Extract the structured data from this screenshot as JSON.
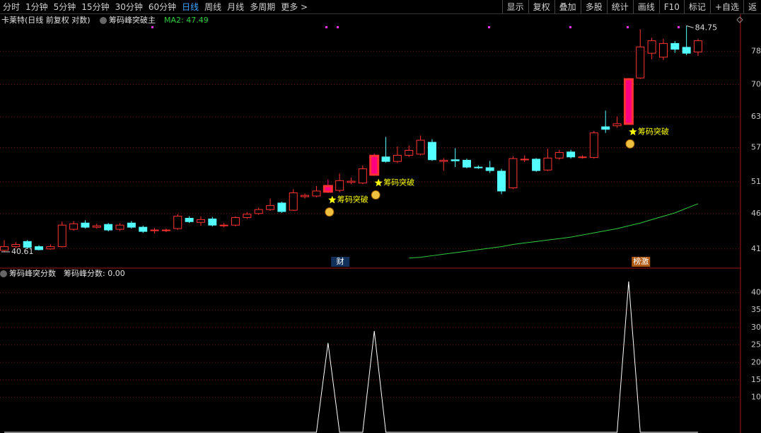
{
  "toolbar": {
    "tabs": [
      "分时",
      "1分钟",
      "5分钟",
      "15分钟",
      "30分钟",
      "60分钟",
      "日线",
      "周线",
      "月线",
      "多周期",
      "更多 >"
    ],
    "active_tab": 6,
    "buttons": [
      "显示",
      "复权",
      "叠加",
      "多股",
      "统计",
      "画线",
      "F10",
      "标记",
      "+自选",
      "返"
    ]
  },
  "main_header": {
    "name": "卡莱特(日线 前复权 对数)",
    "indicator": "筹码峰突破主",
    "ma_label": "MA2: 47.49"
  },
  "chart_data": [
    {
      "type": "candlestick",
      "log_scale": true,
      "grid": true,
      "ylim": [
        38.6,
        88
      ],
      "yticks": [
        41,
        46,
        51,
        57,
        63,
        70,
        78
      ],
      "up_color": "#ff3232",
      "down_color": "#54ffff",
      "highlight_color": "#ff0080",
      "highlight_indices": [
        28,
        32,
        54
      ],
      "open": [
        40.8,
        41.3,
        42.0,
        41.3,
        41.0,
        41.3,
        43.7,
        44.6,
        44.0,
        44.4,
        43.7,
        44.6,
        44.0,
        43.5,
        43.5,
        43.8,
        45.3,
        44.7,
        45.2,
        44.2,
        44.3,
        45.4,
        46.0,
        46.6,
        47.6,
        46.5,
        48.6,
        48.7,
        49.4,
        49.6,
        50.9,
        50.8,
        52.2,
        55.3,
        54.5,
        55.6,
        55.8,
        58.0,
        54.5,
        54.8,
        54.7,
        53.5,
        53.4,
        52.8,
        50.0,
        54.8,
        54.9,
        53.0,
        55.1,
        56.2,
        55.2,
        55.2,
        61.0,
        61.2,
        61.6,
        71.5,
        77.5,
        76.5,
        80.0,
        79.0,
        77.8
      ],
      "high": [
        42.2,
        41.9,
        42.2,
        41.5,
        41.6,
        44.8,
        44.9,
        45.0,
        44.5,
        44.6,
        44.6,
        44.9,
        44.2,
        43.9,
        43.8,
        45.9,
        45.6,
        45.6,
        45.5,
        44.6,
        45.6,
        46.2,
        46.9,
        48.3,
        47.8,
        49.8,
        49.1,
        50.3,
        51.4,
        52.4,
        51.7,
        53.8,
        55.9,
        59.0,
        57.2,
        57.4,
        59.3,
        58.6,
        55.1,
        56.9,
        55.0,
        53.8,
        54.6,
        53.2,
        55.4,
        55.6,
        55.1,
        56.8,
        56.6,
        56.6,
        55.6,
        60.2,
        64.3,
        63.1,
        71.5,
        83.8,
        81.5,
        81.2,
        80.6,
        84.75,
        81.2
      ],
      "low": [
        40.61,
        41.1,
        41.0,
        40.8,
        40.9,
        41.2,
        43.5,
        43.8,
        43.8,
        43.4,
        43.5,
        43.8,
        43.2,
        43.1,
        43.3,
        43.6,
        44.6,
        44.2,
        44.1,
        44.0,
        44.1,
        45.2,
        45.8,
        46.4,
        46.1,
        46.4,
        48.3,
        48.5,
        49.2,
        49.3,
        50.6,
        50.6,
        52.0,
        54.3,
        54.2,
        55.3,
        55.6,
        54.6,
        52.9,
        53.5,
        53.3,
        53.2,
        52.5,
        49.0,
        49.8,
        54.4,
        52.7,
        52.8,
        54.8,
        55.0,
        55.0,
        55.0,
        59.8,
        60.8,
        61.4,
        71.3,
        76.0,
        75.8,
        77.6,
        77.0,
        76.8
      ],
      "close": [
        41.3,
        41.6,
        41.2,
        40.9,
        41.3,
        44.3,
        44.5,
        44.0,
        44.2,
        43.6,
        44.3,
        44.0,
        43.4,
        43.6,
        43.6,
        45.6,
        44.8,
        45.1,
        44.3,
        44.3,
        45.4,
        45.9,
        46.6,
        47.2,
        46.3,
        49.2,
        48.8,
        49.5,
        50.3,
        51.2,
        51.1,
        53.2,
        55.5,
        54.5,
        55.6,
        56.5,
        58.4,
        54.8,
        54.7,
        54.6,
        53.5,
        53.4,
        52.9,
        49.5,
        55.0,
        54.9,
        52.9,
        55.1,
        56.1,
        55.3,
        55.3,
        59.8,
        60.5,
        61.6,
        71.2,
        79.1,
        80.7,
        80.0,
        78.5,
        77.5,
        80.7
      ],
      "ma_color": "#2ecc40",
      "ma_values": [
        null,
        null,
        null,
        null,
        null,
        null,
        null,
        null,
        null,
        null,
        null,
        null,
        null,
        null,
        null,
        null,
        null,
        null,
        null,
        null,
        null,
        null,
        null,
        null,
        null,
        null,
        null,
        null,
        null,
        null,
        null,
        null,
        null,
        null,
        null,
        39.8,
        39.9,
        40.1,
        40.3,
        40.5,
        40.7,
        40.9,
        41.1,
        41.3,
        41.6,
        41.8,
        42.0,
        42.2,
        42.4,
        42.6,
        42.9,
        43.2,
        43.5,
        43.8,
        44.2,
        44.6,
        45.1,
        45.6,
        46.1,
        46.8,
        47.49
      ],
      "annotations": [
        {
          "index": 28,
          "text": "筹码突破"
        },
        {
          "index": 32,
          "text": "筹码突破"
        },
        {
          "index": 54,
          "text": "筹码突破"
        }
      ],
      "events": [
        {
          "index": 29,
          "label": "财"
        },
        {
          "index": 55,
          "label": "榜激"
        }
      ]
    },
    {
      "type": "line",
      "title": "筹码峰突分数",
      "value_label": "筹码峰分数: 0.00",
      "color": "#ffffff",
      "grid": true,
      "ylim": [
        0,
        46.8
      ],
      "yticks": [
        10,
        15,
        20,
        25,
        30,
        35,
        40
      ],
      "values": [
        0,
        0,
        0,
        0,
        0,
        0,
        0,
        0,
        0,
        0,
        0,
        0,
        0,
        0,
        0,
        0,
        0,
        0,
        0,
        0,
        0,
        0,
        0,
        0,
        0,
        0,
        0,
        0,
        25.6,
        0,
        0,
        0,
        29.0,
        0,
        0,
        0,
        0,
        0,
        0,
        0,
        0,
        0,
        0,
        0,
        0,
        0,
        0,
        0,
        0,
        0,
        0,
        0,
        0,
        0,
        43.2,
        0,
        0,
        0,
        0,
        0,
        0
      ]
    }
  ]
}
